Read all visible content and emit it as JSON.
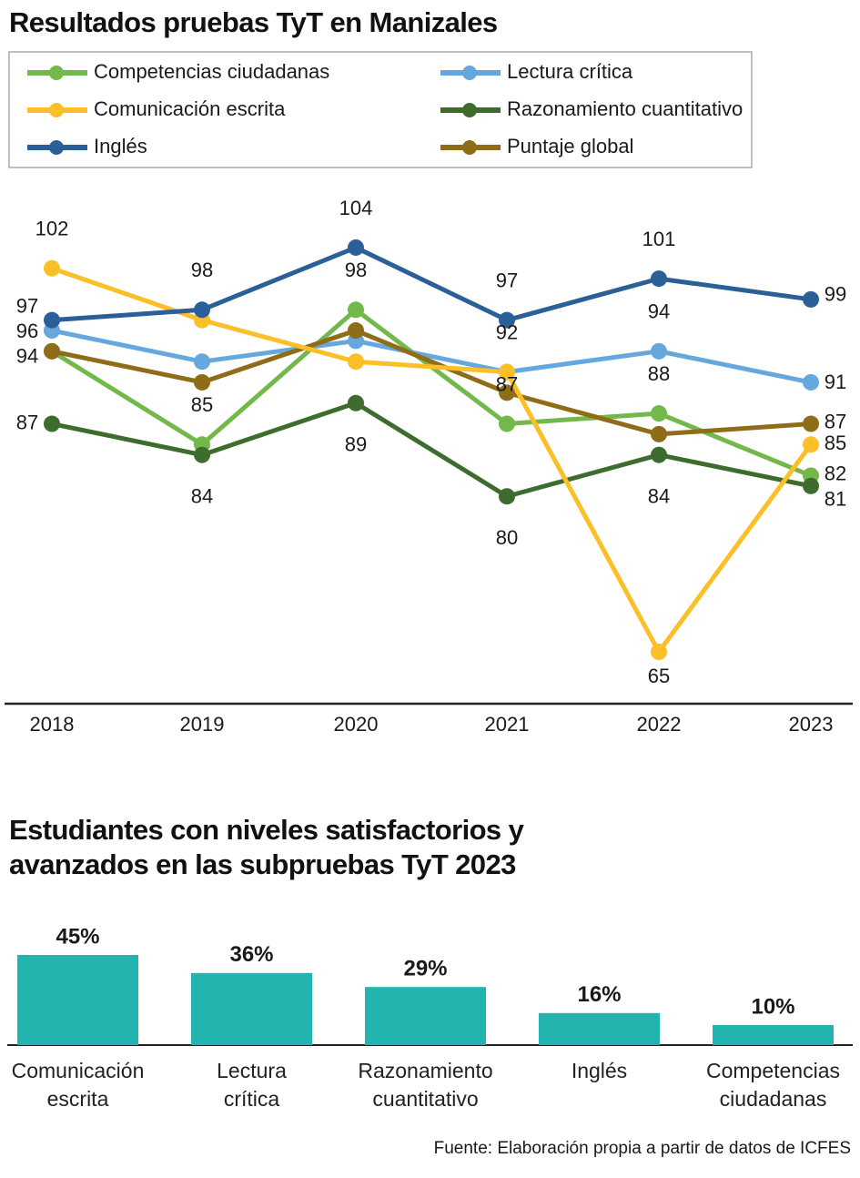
{
  "chart_data": [
    {
      "type": "line",
      "title": "Resultados pruebas TyT en Manizales",
      "categories": [
        "2018",
        "2019",
        "2020",
        "2021",
        "2022",
        "2023"
      ],
      "ylim": [
        60,
        109
      ],
      "series": [
        {
          "name": "Competencias ciudadanas",
          "color": "#72b84a",
          "values": [
            94,
            85,
            98,
            87,
            88,
            82
          ],
          "value_labels": [
            null,
            "85",
            "98",
            "87",
            "88",
            "82"
          ]
        },
        {
          "name": "Lectura crítica",
          "color": "#66a7dd",
          "values": [
            96,
            93,
            95,
            92,
            94,
            91
          ],
          "value_labels": [
            "96",
            null,
            null,
            "92",
            "94",
            "91"
          ]
        },
        {
          "name": "Comunicación escrita",
          "color": "#fbbf28",
          "values": [
            102,
            97,
            93,
            92,
            65,
            85
          ],
          "value_labels": [
            "102",
            null,
            null,
            null,
            "65",
            "85"
          ]
        },
        {
          "name": "Razonamiento cuantitativo",
          "color": "#3e6c2e",
          "values": [
            87,
            84,
            89,
            80,
            84,
            81
          ],
          "value_labels": [
            "87",
            "84",
            "89",
            "80",
            "84",
            "81"
          ]
        },
        {
          "name": "Inglés",
          "color": "#2b5f97",
          "values": [
            97,
            98,
            104,
            97,
            101,
            99
          ],
          "value_labels": [
            "97",
            "98",
            "104",
            "97",
            "101",
            "99"
          ]
        },
        {
          "name": "Puntaje global",
          "color": "#8f6c17",
          "values": [
            94,
            91,
            96,
            90,
            86,
            87
          ],
          "value_labels": [
            "94",
            null,
            null,
            null,
            null,
            "87"
          ]
        }
      ]
    },
    {
      "type": "bar",
      "title": "Estudiantes con niveles satisfactorios y avanzados en las subpruebas TyT 2023",
      "categories": [
        "Comunicación escrita",
        "Lectura crítica",
        "Razonamiento cuantitativo",
        "Inglés",
        "Competencias ciudadanas"
      ],
      "values": [
        45,
        36,
        29,
        16,
        10
      ],
      "value_labels": [
        "45%",
        "36%",
        "29%",
        "16%",
        "10%"
      ],
      "color": "#22b5b0",
      "ylim": [
        0,
        50
      ]
    }
  ],
  "source": "Fuente: Elaboración propia a partir de datos de ICFES"
}
